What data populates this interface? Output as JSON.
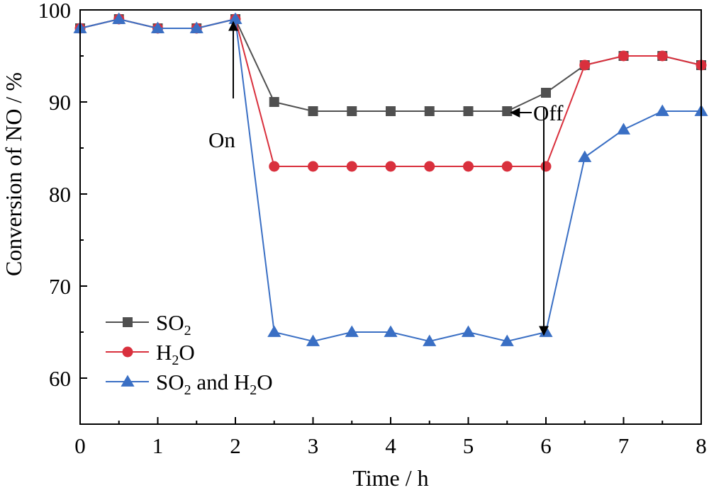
{
  "chart_data": {
    "type": "line",
    "xlabel": "Time / h",
    "ylabel": "Conversion of NO / %",
    "xlim": [
      0,
      8
    ],
    "ylim": [
      55,
      100
    ],
    "x_ticks": [
      0,
      1,
      2,
      3,
      4,
      5,
      6,
      7,
      8
    ],
    "y_ticks": [
      60,
      70,
      80,
      90,
      100
    ],
    "grid": false,
    "legend_position": "bottom-left",
    "x": [
      0,
      0.5,
      1,
      1.5,
      2,
      2.5,
      3,
      3.5,
      4,
      4.5,
      5,
      5.5,
      6,
      6.5,
      7,
      7.5,
      8
    ],
    "series": [
      {
        "name": "SO2",
        "legend_parts": [
          "SO",
          "2",
          ""
        ],
        "color": "#505050",
        "marker": "square",
        "values": [
          98,
          99,
          98,
          98,
          99,
          90,
          89,
          89,
          89,
          89,
          89,
          89,
          91,
          94,
          95,
          95,
          94
        ]
      },
      {
        "name": "H2O",
        "legend_parts": [
          "H",
          "2",
          "O"
        ],
        "color": "#d9303d",
        "marker": "circle",
        "values": [
          98,
          99,
          98,
          98,
          99,
          83,
          83,
          83,
          83,
          83,
          83,
          83,
          83,
          94,
          95,
          95,
          94
        ]
      },
      {
        "name": "SO2 and H2O",
        "legend_parts": [
          "SO",
          "2",
          " and H",
          "2",
          "O"
        ],
        "color": "#3a6fc4",
        "marker": "triangle",
        "values": [
          98,
          99,
          98,
          98,
          99,
          65,
          64,
          65,
          65,
          64,
          65,
          64,
          65,
          84,
          87,
          89,
          89
        ]
      }
    ],
    "annotations": [
      {
        "text": "On",
        "x": 2,
        "arrow_from_y": 90,
        "arrow_to_y": 99
      },
      {
        "text": "Off",
        "x": 6,
        "arrow_from_y": 89,
        "arrow_to_y": 65
      }
    ]
  }
}
